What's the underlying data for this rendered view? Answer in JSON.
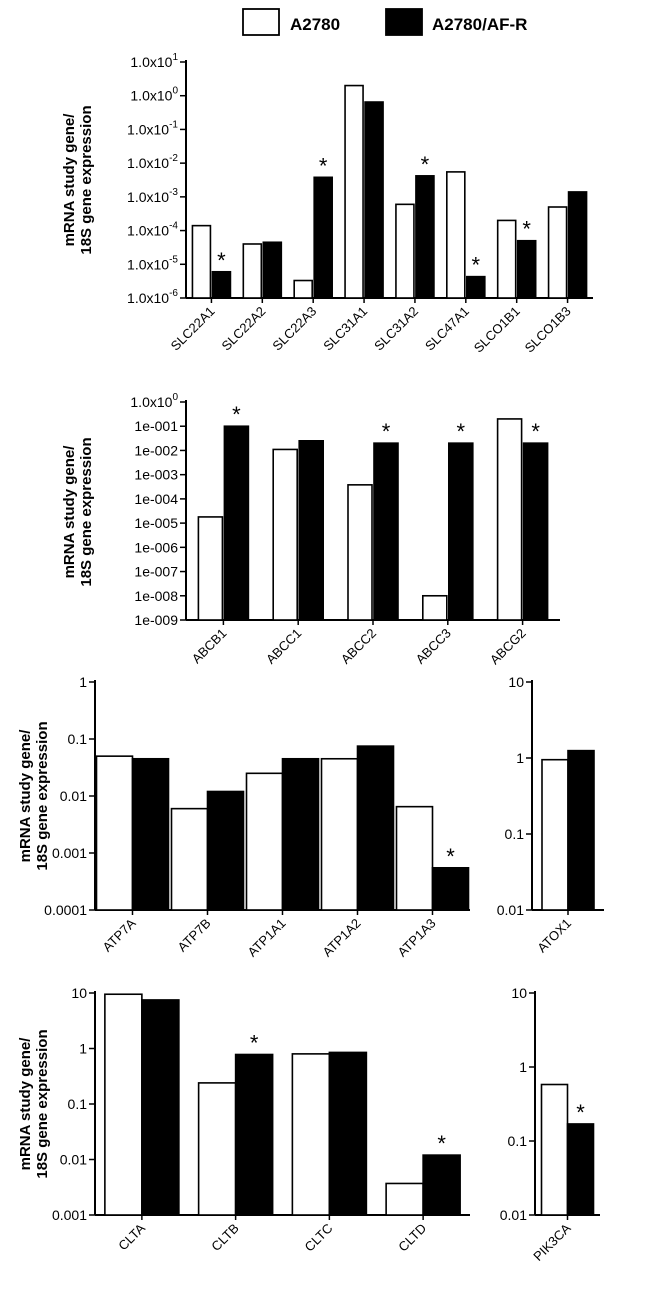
{
  "legend": [
    {
      "label": "A2780",
      "color": "#ffffff"
    },
    {
      "label": "A2780/AF-R",
      "color": "#000000"
    }
  ],
  "chart_data": [
    {
      "type": "bar",
      "title": "",
      "ylabel": [
        "mRNA study gene/",
        "18S gene expression"
      ],
      "yscale": "log",
      "ylim_exp": [
        -6,
        1
      ],
      "tick_label_style": "sci",
      "tick_labels": [
        "1.0x10-6",
        "1.0x10-5",
        "1.0x10-4",
        "1.0x10-3",
        "1.0x10-2",
        "1.0x10-1",
        "1.0x100",
        "1.0x101"
      ],
      "categories": [
        "SLC22A1",
        "SLC22A2",
        "SLC22A3",
        "SLC31A1",
        "SLC31A2",
        "SLC47A1",
        "SLCO1B1",
        "SLCO1B3"
      ],
      "series": [
        {
          "name": "A2780",
          "values": [
            0.00014,
            4e-05,
            3.3e-06,
            2.0,
            0.0006,
            0.0055,
            0.0002,
            0.0005
          ]
        },
        {
          "name": "A2780/AF-R",
          "values": [
            6e-06,
            4.5e-05,
            0.0038,
            0.65,
            0.0042,
            4.3e-06,
            5e-05,
            0.0014
          ]
        }
      ],
      "significant": [
        true,
        false,
        true,
        false,
        true,
        true,
        true,
        false
      ]
    },
    {
      "type": "bar",
      "title": "",
      "ylabel": [
        "mRNA study gene/",
        "18S gene expression"
      ],
      "yscale": "log",
      "ylim_exp": [
        -9,
        0
      ],
      "tick_label_style": "e",
      "tick_labels": [
        "1e-009",
        "1e-008",
        "1e-007",
        "1e-006",
        "1e-005",
        "1e-004",
        "1e-003",
        "1e-002",
        "1e-001",
        "1.0x100"
      ],
      "categories": [
        "ABCB1",
        "ABCC1",
        "ABCC2",
        "ABCC3",
        "ABCG2"
      ],
      "series": [
        {
          "name": "A2780",
          "values": [
            1.8e-05,
            0.011,
            0.00038,
            1e-08,
            0.2
          ]
        },
        {
          "name": "A2780/AF-R",
          "values": [
            0.1,
            0.025,
            0.02,
            0.02,
            0.02
          ]
        }
      ],
      "significant": [
        true,
        false,
        true,
        true,
        true
      ]
    },
    {
      "type": "bar",
      "title": "",
      "ylabel": [
        "mRNA study gene/",
        "18S gene expression"
      ],
      "yscale": "log",
      "ylim_exp": [
        -4,
        0
      ],
      "tick_label_style": "dec",
      "tick_labels": [
        "0.0001",
        "0.001",
        "0.01",
        "0.1",
        "1"
      ],
      "categories": [
        "ATP7A",
        "ATP7B",
        "ATP1A1",
        "ATP1A2",
        "ATP1A3"
      ],
      "series": [
        {
          "name": "A2780",
          "values": [
            0.05,
            0.006,
            0.025,
            0.045,
            0.0065
          ]
        },
        {
          "name": "A2780/AF-R",
          "values": [
            0.045,
            0.012,
            0.045,
            0.075,
            0.00055
          ]
        }
      ],
      "significant": [
        false,
        false,
        false,
        false,
        true
      ]
    },
    {
      "type": "bar",
      "title": "",
      "ylabel": [],
      "yscale": "log",
      "ylim_exp": [
        -2,
        1
      ],
      "tick_label_style": "dec",
      "tick_labels": [
        "0.01",
        "0.1",
        "1",
        "10"
      ],
      "categories": [
        "ATOX1"
      ],
      "series": [
        {
          "name": "A2780",
          "values": [
            0.95
          ]
        },
        {
          "name": "A2780/AF-R",
          "values": [
            1.25
          ]
        }
      ],
      "significant": [
        false
      ]
    },
    {
      "type": "bar",
      "title": "",
      "ylabel": [
        "mRNA study gene/",
        "18S gene expression"
      ],
      "yscale": "log",
      "ylim_exp": [
        -3,
        1
      ],
      "tick_label_style": "dec",
      "tick_labels": [
        "0.001",
        "0.01",
        "0.1",
        "1",
        "10"
      ],
      "categories": [
        "CLTA",
        "CLTB",
        "CLTC",
        "CLTD"
      ],
      "series": [
        {
          "name": "A2780",
          "values": [
            9.5,
            0.24,
            0.8,
            0.0037
          ]
        },
        {
          "name": "A2780/AF-R",
          "values": [
            7.5,
            0.78,
            0.85,
            0.012
          ]
        }
      ],
      "significant": [
        false,
        true,
        false,
        true
      ]
    },
    {
      "type": "bar",
      "title": "",
      "ylabel": [],
      "yscale": "log",
      "ylim_exp": [
        -2,
        1
      ],
      "tick_label_style": "dec",
      "tick_labels": [
        "0.01",
        "0.1",
        "1",
        "10"
      ],
      "categories": [
        "PIK3CA"
      ],
      "series": [
        {
          "name": "A2780",
          "values": [
            0.58
          ]
        },
        {
          "name": "A2780/AF-R",
          "values": [
            0.17
          ]
        }
      ],
      "significant": [
        true
      ]
    }
  ]
}
